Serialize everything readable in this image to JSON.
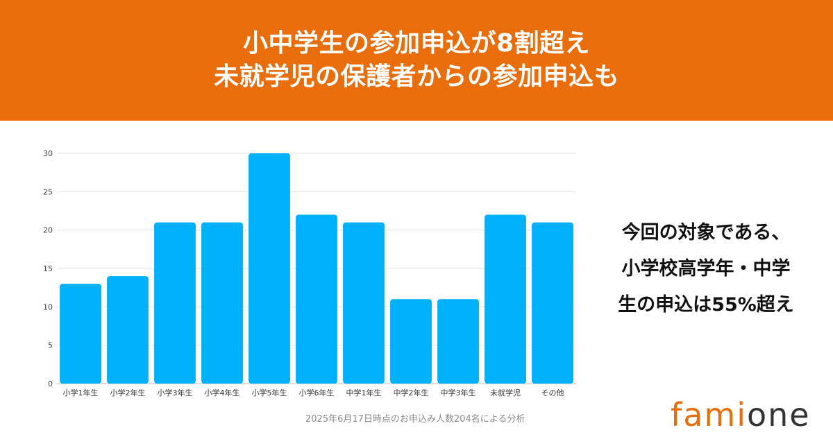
{
  "header": {
    "title_line1": "小中学生の参加申込が8割超え",
    "title_line2": "未就学児の保護者からの参加申込も"
  },
  "callout": {
    "line1": "今回の対象である、",
    "line2": "小学校高学年・中学",
    "line3": "生の申込は55%超え"
  },
  "footnote": "2025年6月17日時点のお申込み人数204名による分析",
  "logo": {
    "part1": "fami",
    "part2": "one"
  },
  "colors": {
    "banner": "#ea6d0c",
    "bar": "#00b0f8",
    "logo_accent": "#ea6d0c",
    "logo_dark": "#333333"
  },
  "chart_data": {
    "type": "bar",
    "categories": [
      "小学1年生",
      "小学2年生",
      "小学3年生",
      "小学4年生",
      "小学5年生",
      "小学6年生",
      "中学1年生",
      "中学2年生",
      "中学3年生",
      "未就学児",
      "その他"
    ],
    "values": [
      13,
      14,
      21,
      21,
      30,
      22,
      21,
      11,
      11,
      22,
      21
    ],
    "ylim": [
      0,
      30
    ],
    "yticks": [
      0,
      5,
      10,
      15,
      20,
      25,
      30
    ],
    "grid": true,
    "legend": "none",
    "title": "",
    "xlabel": "",
    "ylabel": ""
  }
}
